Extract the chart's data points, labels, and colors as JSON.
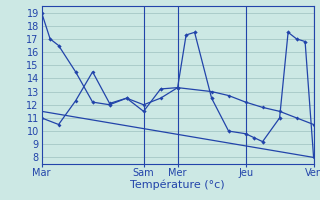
{
  "xlabel": "Température (°c)",
  "background_color": "#cce8e4",
  "grid_color": "#aaccca",
  "line_color": "#2244aa",
  "xlim": [
    0,
    96
  ],
  "ylim": [
    7.5,
    19.5
  ],
  "yticks": [
    8,
    9,
    10,
    11,
    12,
    13,
    14,
    15,
    16,
    17,
    18,
    19
  ],
  "xtick_positions": [
    0,
    36,
    48,
    72,
    96
  ],
  "xtick_labels": [
    "Mar",
    "Sam",
    "Mer",
    "Jeu",
    "Ven"
  ],
  "vlines": [
    36,
    48,
    72,
    96
  ],
  "series1_x": [
    0,
    3,
    6,
    12,
    18,
    24,
    30,
    36,
    42,
    48,
    51,
    54,
    60,
    66,
    72,
    75,
    78,
    84,
    87,
    90,
    93,
    96
  ],
  "series1_y": [
    19.0,
    17.0,
    16.5,
    14.5,
    12.2,
    12.0,
    12.5,
    11.5,
    13.2,
    13.3,
    17.3,
    17.5,
    12.5,
    10.0,
    9.8,
    9.5,
    9.2,
    11.0,
    17.5,
    17.0,
    16.8,
    8.0
  ],
  "series2_x": [
    0,
    6,
    12,
    18,
    24,
    30,
    36,
    42,
    48,
    60,
    66,
    72,
    78,
    84,
    90,
    96
  ],
  "series2_y": [
    11.0,
    10.5,
    12.3,
    14.5,
    12.1,
    12.5,
    12.0,
    12.5,
    13.3,
    13.0,
    12.7,
    12.2,
    11.8,
    11.5,
    11.0,
    10.5
  ],
  "series3_x": [
    0,
    96
  ],
  "series3_y": [
    11.5,
    8.0
  ]
}
